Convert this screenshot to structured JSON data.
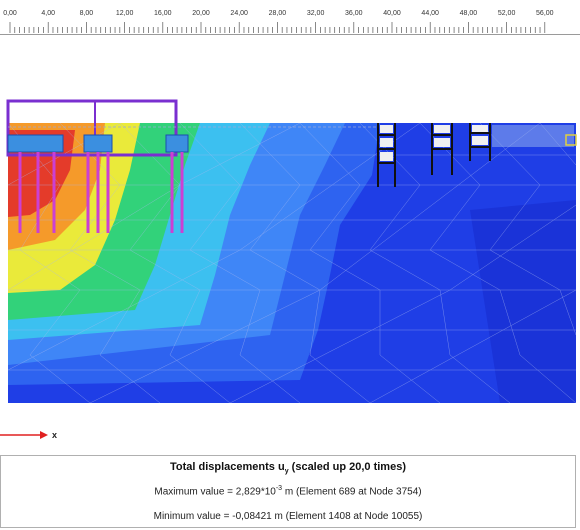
{
  "ruler": {
    "ticks": [
      "0,00",
      "4,00",
      "8,00",
      "12,00",
      "16,00",
      "20,00",
      "24,00",
      "28,00",
      "32,00",
      "36,00",
      "40,00",
      "44,00",
      "48,00",
      "52,00",
      "56,00"
    ]
  },
  "legend": {
    "axis_label": "x",
    "title_prefix": "Total displacements u",
    "title_sub": "y",
    "title_suffix": " (scaled up 20,0 times)",
    "max_prefix": "Maximum value = 2,829*10",
    "max_exp": "-3",
    "max_suffix": " m (Element 689 at Node 3754)",
    "min_text": "Minimum value = -0,08421 m (Element 1408 at Node 10055)"
  },
  "colors": {
    "deep_blue": "#1f3ee6",
    "mid_blue": "#2e63f0",
    "light_blue": "#3f86f7",
    "cyan": "#3cc0f0",
    "green": "#32d27a",
    "yellow": "#eaea3a",
    "orange": "#f59a2a",
    "red": "#e43b2a",
    "mesh": "#aab8f0",
    "structure": "#7a2fd0",
    "pile": "#cc3fd3",
    "axis_arrow": "#e02020"
  }
}
